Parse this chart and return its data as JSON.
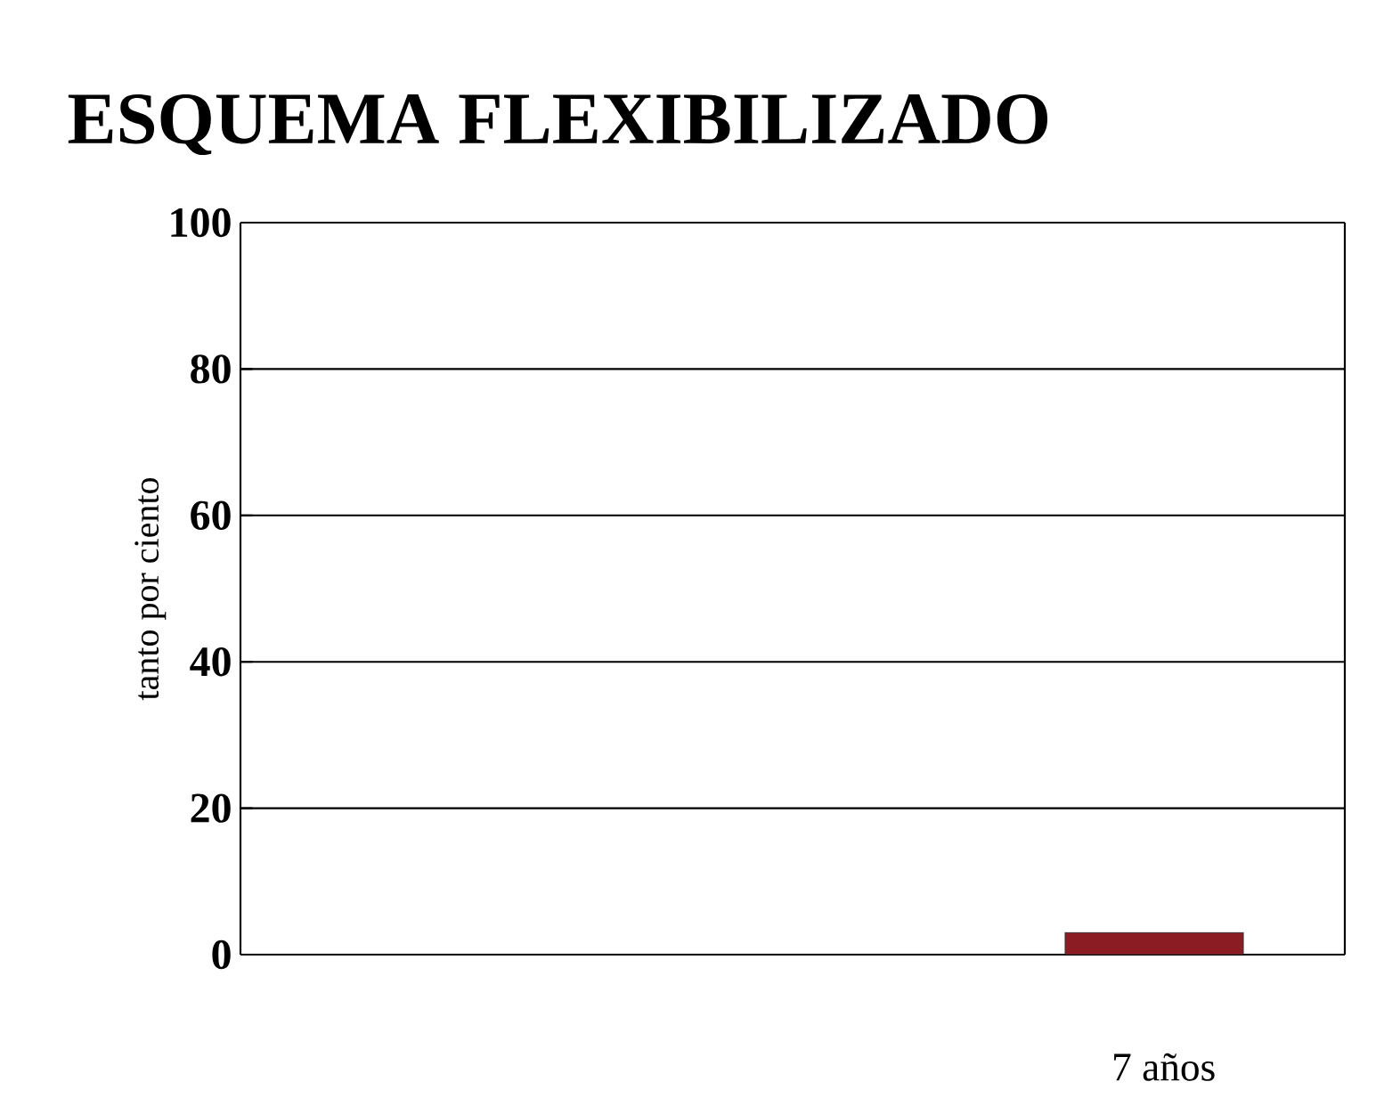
{
  "chart_data": {
    "type": "bar",
    "title": "ESQUEMA FLEXIBILIZADO",
    "ylabel": "tanto por ciento",
    "categories": [
      null,
      "7 años"
    ],
    "values": [
      null,
      3
    ],
    "color": "#8b1c24",
    "ylim": [
      0,
      100
    ],
    "yticks": [
      0,
      20,
      40,
      60,
      80,
      100
    ],
    "grid": "y"
  }
}
